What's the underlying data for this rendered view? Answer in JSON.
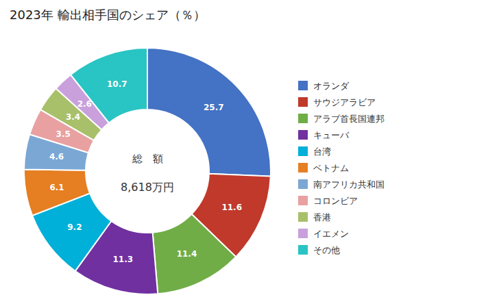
{
  "chart_data": {
    "type": "donut",
    "title": "2023年 輸出相手国のシェア（％）",
    "categories": [
      "オランダ",
      "サウジアラビア",
      "アラブ首長国連邦",
      "キューバ",
      "台湾",
      "ベトナム",
      "南アフリカ共和国",
      "コロンビア",
      "香港",
      "イエメン",
      "その他"
    ],
    "values": [
      25.7,
      11.6,
      11.4,
      11.3,
      9.2,
      6.1,
      4.6,
      3.5,
      3.4,
      2.6,
      10.7
    ],
    "colors": [
      "#4472C4",
      "#C0392B",
      "#70AD47",
      "#7030A0",
      "#00B0D8",
      "#E67E22",
      "#7BA7D4",
      "#E8A0A0",
      "#A8C06A",
      "#C9A0DC",
      "#29C4C4"
    ],
    "annotations": [
      "総　額",
      "8,618万円"
    ],
    "data_labels": true,
    "legend": "right"
  }
}
